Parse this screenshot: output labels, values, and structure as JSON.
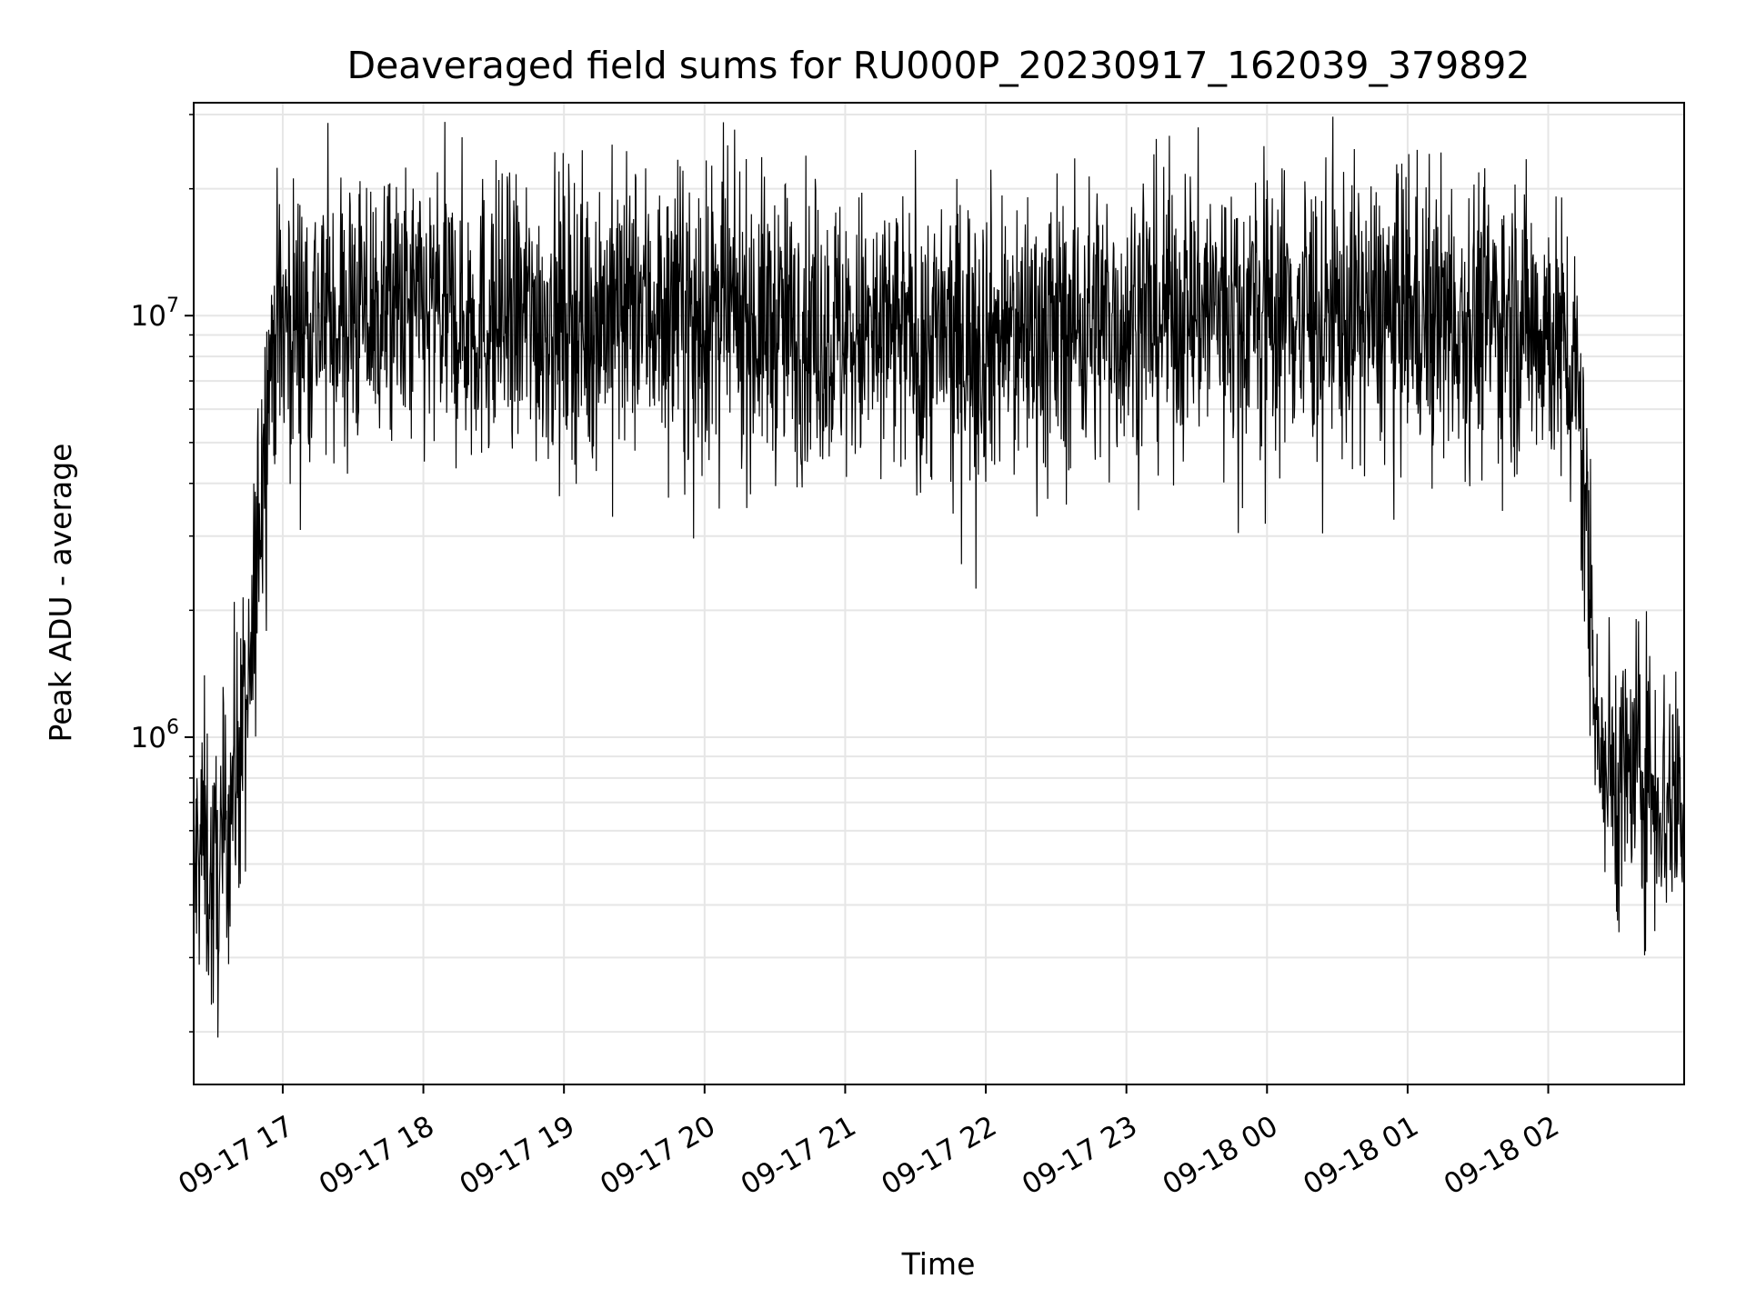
{
  "chart_data": {
    "type": "line",
    "title": "Deaveraged field sums for RU000P_20230917_162039_379892",
    "xlabel": "Time",
    "ylabel": "Peak ADU - average",
    "y_scale": "log",
    "ylim": [
      150000,
      32000000
    ],
    "xlim": [
      "2023-09-17 16:22",
      "2023-09-18 02:58"
    ],
    "grid": true,
    "line_color": "#000000",
    "grid_color": "#e6e6e6",
    "x_ticks": [
      {
        "value": "2023-09-17 17:00",
        "label": "09-17 17"
      },
      {
        "value": "2023-09-17 18:00",
        "label": "09-17 18"
      },
      {
        "value": "2023-09-17 19:00",
        "label": "09-17 19"
      },
      {
        "value": "2023-09-17 20:00",
        "label": "09-17 20"
      },
      {
        "value": "2023-09-17 21:00",
        "label": "09-17 21"
      },
      {
        "value": "2023-09-17 22:00",
        "label": "09-17 22"
      },
      {
        "value": "2023-09-17 23:00",
        "label": "09-17 23"
      },
      {
        "value": "2023-09-18 00:00",
        "label": "09-18 00"
      },
      {
        "value": "2023-09-18 01:00",
        "label": "09-18 01"
      },
      {
        "value": "2023-09-18 02:00",
        "label": "09-18 02"
      }
    ],
    "y_ticks": [
      {
        "value": 1000000,
        "base": "10",
        "exp": "6"
      },
      {
        "value": 10000000,
        "base": "10",
        "exp": "7"
      }
    ],
    "series": [
      {
        "values": [
          [
            "2023-09-17 16:22",
            450000
          ],
          [
            "2023-09-17 16:26",
            600000
          ],
          [
            "2023-09-17 16:30",
            420000
          ],
          [
            "2023-09-17 16:34",
            500000
          ],
          [
            "2023-09-17 16:38",
            750000
          ],
          [
            "2023-09-17 16:42",
            950000
          ],
          [
            "2023-09-17 16:46",
            1200000
          ],
          [
            "2023-09-17 16:50",
            3500000
          ],
          [
            "2023-09-17 16:54",
            7500000
          ],
          [
            "2023-09-17 16:58",
            9500000
          ],
          [
            "2023-09-17 17:10",
            10000000
          ],
          [
            "2023-09-17 17:30",
            10200000
          ],
          [
            "2023-09-17 18:00",
            10000000
          ],
          [
            "2023-09-17 18:30",
            9800000
          ],
          [
            "2023-09-17 19:00",
            10000000
          ],
          [
            "2023-09-17 19:30",
            10500000
          ],
          [
            "2023-09-17 20:00",
            10000000
          ],
          [
            "2023-09-17 20:30",
            9500000
          ],
          [
            "2023-09-17 21:00",
            9000000
          ],
          [
            "2023-09-17 21:30",
            8800000
          ],
          [
            "2023-09-17 22:00",
            9000000
          ],
          [
            "2023-09-17 22:30",
            9500000
          ],
          [
            "2023-09-17 23:00",
            9800000
          ],
          [
            "2023-09-17 23:30",
            10500000
          ],
          [
            "2023-09-18 00:00",
            10500000
          ],
          [
            "2023-09-18 00:30",
            10000000
          ],
          [
            "2023-09-18 01:00",
            10200000
          ],
          [
            "2023-09-18 01:30",
            10000000
          ],
          [
            "2023-09-18 02:00",
            9500000
          ],
          [
            "2023-09-18 02:12",
            7000000
          ],
          [
            "2023-09-18 02:18",
            2500000
          ],
          [
            "2023-09-18 02:22",
            900000
          ],
          [
            "2023-09-18 02:30",
            800000
          ],
          [
            "2023-09-18 02:40",
            850000
          ],
          [
            "2023-09-18 02:50",
            700000
          ],
          [
            "2023-09-18 02:58",
            750000
          ]
        ]
      }
    ]
  }
}
